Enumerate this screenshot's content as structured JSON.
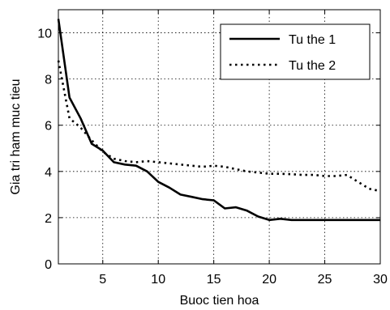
{
  "chart_data": {
    "type": "line",
    "xlabel": "Buoc tien hoa",
    "ylabel": "Gia tri ham muc tieu",
    "xlim": [
      1,
      30
    ],
    "ylim": [
      0,
      11
    ],
    "xticks": [
      5,
      10,
      15,
      20,
      25,
      30
    ],
    "yticks": [
      0,
      2,
      4,
      6,
      8,
      10
    ],
    "grid": true,
    "legend_position": "top-right",
    "series": [
      {
        "name": "Tu the 1",
        "style": "solid",
        "color": "#000000",
        "x": [
          1,
          2,
          3,
          4,
          5,
          6,
          7,
          8,
          9,
          10,
          11,
          12,
          13,
          14,
          15,
          16,
          17,
          18,
          19,
          20,
          21,
          22,
          23,
          24,
          25,
          26,
          27,
          28,
          29,
          30
        ],
        "y": [
          10.6,
          7.2,
          6.3,
          5.2,
          4.9,
          4.4,
          4.3,
          4.25,
          4.0,
          3.55,
          3.3,
          3.0,
          2.9,
          2.8,
          2.75,
          2.4,
          2.45,
          2.3,
          2.05,
          1.9,
          1.95,
          1.9,
          1.9,
          1.9,
          1.9,
          1.9,
          1.9,
          1.9,
          1.9,
          1.9
        ]
      },
      {
        "name": "Tu the 2",
        "style": "dotted",
        "color": "#000000",
        "x": [
          1,
          2,
          3,
          4,
          5,
          6,
          7,
          8,
          9,
          10,
          11,
          12,
          13,
          14,
          15,
          16,
          17,
          18,
          19,
          20,
          21,
          22,
          23,
          24,
          25,
          26,
          27,
          28,
          29,
          30
        ],
        "y": [
          8.8,
          6.3,
          5.9,
          5.35,
          4.85,
          4.55,
          4.45,
          4.4,
          4.45,
          4.4,
          4.35,
          4.3,
          4.25,
          4.2,
          4.25,
          4.2,
          4.1,
          4.0,
          3.95,
          3.9,
          3.9,
          3.88,
          3.85,
          3.85,
          3.8,
          3.8,
          3.85,
          3.55,
          3.25,
          3.15
        ]
      }
    ]
  }
}
